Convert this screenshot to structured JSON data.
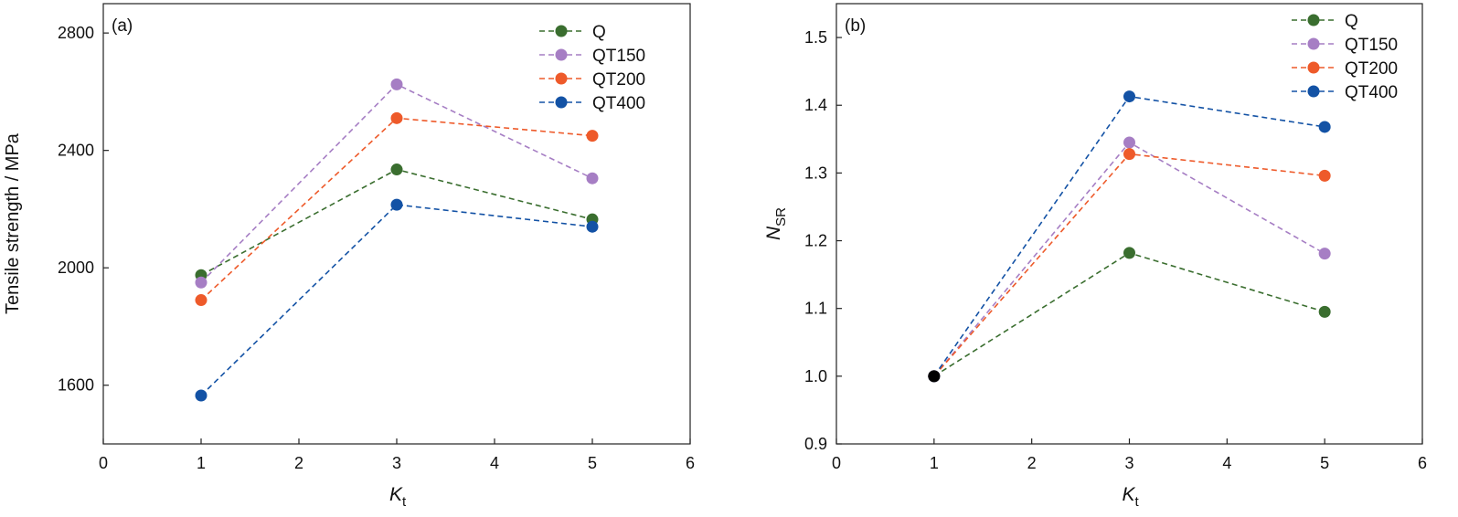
{
  "chart_data": [
    {
      "type": "line",
      "panel_label": "(a)",
      "xlabel": {
        "main": "K",
        "sub": "t"
      },
      "ylabel": {
        "main": "Tensile strength / MPa",
        "sub": ""
      },
      "xlim": [
        0,
        6
      ],
      "ylim": [
        1400,
        2900
      ],
      "xticks": [
        0,
        1,
        2,
        3,
        4,
        5,
        6
      ],
      "yticks": [
        1600,
        2000,
        2400,
        2800
      ],
      "ytick_decimals": 0,
      "x": [
        1,
        3,
        5
      ],
      "legend_position": "top-right",
      "grid": false,
      "series": [
        {
          "name": "Q",
          "color": "#3a6e2f",
          "values": [
            1975,
            2335,
            2165
          ]
        },
        {
          "name": "QT150",
          "color": "#a67ec4",
          "values": [
            1950,
            2625,
            2305
          ]
        },
        {
          "name": "QT200",
          "color": "#ee5a2a",
          "values": [
            1890,
            2510,
            2450
          ]
        },
        {
          "name": "QT400",
          "color": "#1352a5",
          "values": [
            1565,
            2215,
            2140
          ]
        }
      ],
      "special_points": []
    },
    {
      "type": "line",
      "panel_label": "(b)",
      "xlabel": {
        "main": "K",
        "sub": "t"
      },
      "ylabel": {
        "main": "N",
        "sub": "SR"
      },
      "xlim": [
        0,
        6
      ],
      "ylim": [
        0.9,
        1.55
      ],
      "xticks": [
        0,
        1,
        2,
        3,
        4,
        5,
        6
      ],
      "yticks": [
        0.9,
        1.0,
        1.1,
        1.2,
        1.3,
        1.4,
        1.5
      ],
      "ytick_decimals": 1,
      "x": [
        1,
        3,
        5
      ],
      "legend_position": "top-right",
      "grid": false,
      "series": [
        {
          "name": "Q",
          "color": "#3a6e2f",
          "values": [
            1.0,
            1.182,
            1.095
          ]
        },
        {
          "name": "QT150",
          "color": "#a67ec4",
          "values": [
            1.0,
            1.345,
            1.181
          ]
        },
        {
          "name": "QT200",
          "color": "#ee5a2a",
          "values": [
            1.0,
            1.328,
            1.296
          ]
        },
        {
          "name": "QT400",
          "color": "#1352a5",
          "values": [
            1.0,
            1.413,
            1.368
          ]
        }
      ],
      "special_points": [
        {
          "x": 1,
          "y": 1.0,
          "color": "#000000"
        }
      ]
    }
  ]
}
